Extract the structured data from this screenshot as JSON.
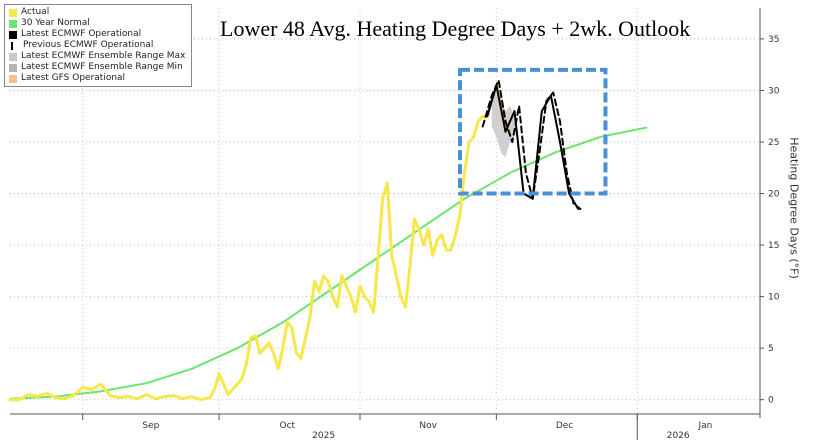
{
  "chart_data": {
    "type": "line",
    "title": "Lower 48 Avg. Heating Degree Days + 2wk. Outlook",
    "ylabel": "Heating Degree Days (°F)",
    "ylim": [
      -1,
      38
    ],
    "yticks": [
      0,
      5,
      10,
      15,
      20,
      25,
      30,
      35
    ],
    "grid": true,
    "legend_position": "top-left",
    "x_tick_labels": [
      {
        "label": "Sep",
        "day": 31
      },
      {
        "label": "Oct",
        "day": 61
      },
      {
        "label": "Nov",
        "day": 92
      },
      {
        "label": "Dec",
        "day": 122
      },
      {
        "label": "Jan",
        "day": 153
      }
    ],
    "year_labels": [
      {
        "label": "2025",
        "day": 69
      },
      {
        "label": "2026",
        "day": 147
      }
    ],
    "highlight_box": {
      "x": [
        99,
        131
      ],
      "y": [
        20,
        32
      ],
      "color": "#4a90d9"
    },
    "series": [
      {
        "name": "Actual",
        "color": "#f7e84a",
        "style": "solid",
        "x": [
          0,
          2,
          4,
          6,
          8,
          10,
          12,
          14,
          16,
          18,
          20,
          22,
          24,
          26,
          28,
          30,
          32,
          34,
          36,
          38,
          40,
          42,
          44,
          45,
          46,
          47,
          48,
          49,
          50,
          51,
          52,
          53,
          54,
          55,
          56,
          57,
          58,
          59,
          60,
          61,
          62,
          63,
          64,
          65,
          66,
          67,
          68,
          69,
          70,
          71,
          72,
          73,
          74,
          75,
          76,
          77,
          78,
          79,
          80,
          81,
          82,
          83,
          84,
          85,
          86,
          87,
          88,
          89,
          90,
          91,
          92,
          93,
          94,
          95,
          96,
          97,
          98,
          99,
          100,
          101,
          102,
          103,
          104,
          105
        ],
        "y": [
          0,
          0,
          0.5,
          0.3,
          0.6,
          0.2,
          0.1,
          0.4,
          1.2,
          1.0,
          1.5,
          0.4,
          0.2,
          0.3,
          0.1,
          0.5,
          0.1,
          0.3,
          0.4,
          0.1,
          0.3,
          0,
          0.2,
          1.0,
          2.5,
          1.5,
          0.5,
          1.0,
          1.5,
          2.0,
          3.5,
          6.0,
          6.2,
          4.5,
          5.0,
          5.5,
          4.5,
          3.0,
          5.0,
          7.5,
          7.0,
          4.5,
          4.0,
          6.0,
          8.0,
          11.5,
          10.5,
          12.0,
          11.5,
          10.0,
          9.0,
          12.0,
          11.0,
          10.0,
          8.5,
          11.0,
          10.0,
          9.5,
          8.5,
          14.0,
          19.5,
          21.0,
          14.0,
          12.0,
          10.0,
          9.0,
          13.0,
          17.5,
          16.5,
          15.0,
          16.5,
          14.0,
          15.5,
          16.0,
          14.5,
          14.5,
          16.0,
          18.0,
          22.0,
          25.0,
          25.5,
          27.0,
          27.5,
          27.5
        ]
      },
      {
        "name": "30 Year Normal",
        "color": "#6ee46e",
        "style": "solid",
        "x": [
          0,
          10,
          20,
          30,
          40,
          50,
          60,
          70,
          80,
          90,
          100,
          110,
          120,
          130,
          140
        ],
        "y": [
          0.1,
          0.3,
          0.8,
          1.6,
          3.0,
          5.0,
          7.5,
          10.5,
          13.5,
          16.5,
          19.5,
          22.0,
          24.0,
          25.5,
          26.4
        ]
      },
      {
        "name": "Latest ECMWF Operational",
        "color": "#000000",
        "style": "solid",
        "x": [
          105,
          107,
          109,
          111,
          113,
          115,
          117,
          119,
          121,
          123,
          125
        ],
        "y": [
          27.5,
          30.5,
          26.0,
          28.0,
          20.0,
          19.5,
          28.0,
          29.5,
          25.0,
          20.0,
          18.5
        ]
      },
      {
        "name": "Previous ECMWF Operational",
        "color": "#000000",
        "style": "dashed",
        "x": [
          104,
          106,
          107.5,
          109,
          110.5,
          112,
          113.5,
          115,
          116.5,
          118,
          119.5,
          121,
          122.5,
          124,
          125.5
        ],
        "y": [
          26.5,
          29.5,
          31.0,
          27.0,
          25.0,
          28.5,
          22.0,
          19.5,
          24.0,
          29.0,
          29.8,
          27.0,
          22.0,
          19.0,
          18.5
        ]
      },
      {
        "name": "Latest ECMWF Ensemble Range Max",
        "color": "#c8c8c8",
        "style": "band",
        "x": [
          106,
          107,
          108,
          109,
          110,
          111
        ],
        "y": [
          29.5,
          30.0,
          29.0,
          28.0,
          28.5,
          27.5
        ]
      },
      {
        "name": "Latest ECMWF Ensemble Range Min",
        "color": "#b4b4b4",
        "style": "band",
        "x": [
          106,
          107,
          108,
          109,
          110,
          111
        ],
        "y": [
          26.5,
          25.5,
          24.0,
          23.5,
          25.0,
          25.5
        ]
      },
      {
        "name": "Latest GFS Operational",
        "color": "#f5c08a",
        "style": "solid",
        "x": [
          105,
          106,
          107,
          108,
          109,
          110
        ],
        "y": [
          27.5,
          29.0,
          30.5,
          29.0,
          27.0,
          26.0
        ]
      }
    ]
  },
  "legend": {
    "items": [
      {
        "label": "Actual",
        "color": "#f7e84a",
        "style": "box"
      },
      {
        "label": "30 Year Normal",
        "color": "#6ee46e",
        "style": "box"
      },
      {
        "label": "Latest ECMWF Operational",
        "color": "#000000",
        "style": "box"
      },
      {
        "label": "Previous ECMWF Operational",
        "color": "#000000",
        "style": "dashed"
      },
      {
        "label": "Latest ECMWF Ensemble Range Max",
        "color": "#c8c8c8",
        "style": "box"
      },
      {
        "label": "Latest ECMWF Ensemble Range Min",
        "color": "#b4b4b4",
        "style": "box"
      },
      {
        "label": "Latest GFS Operational",
        "color": "#f5c08a",
        "style": "box"
      }
    ]
  }
}
